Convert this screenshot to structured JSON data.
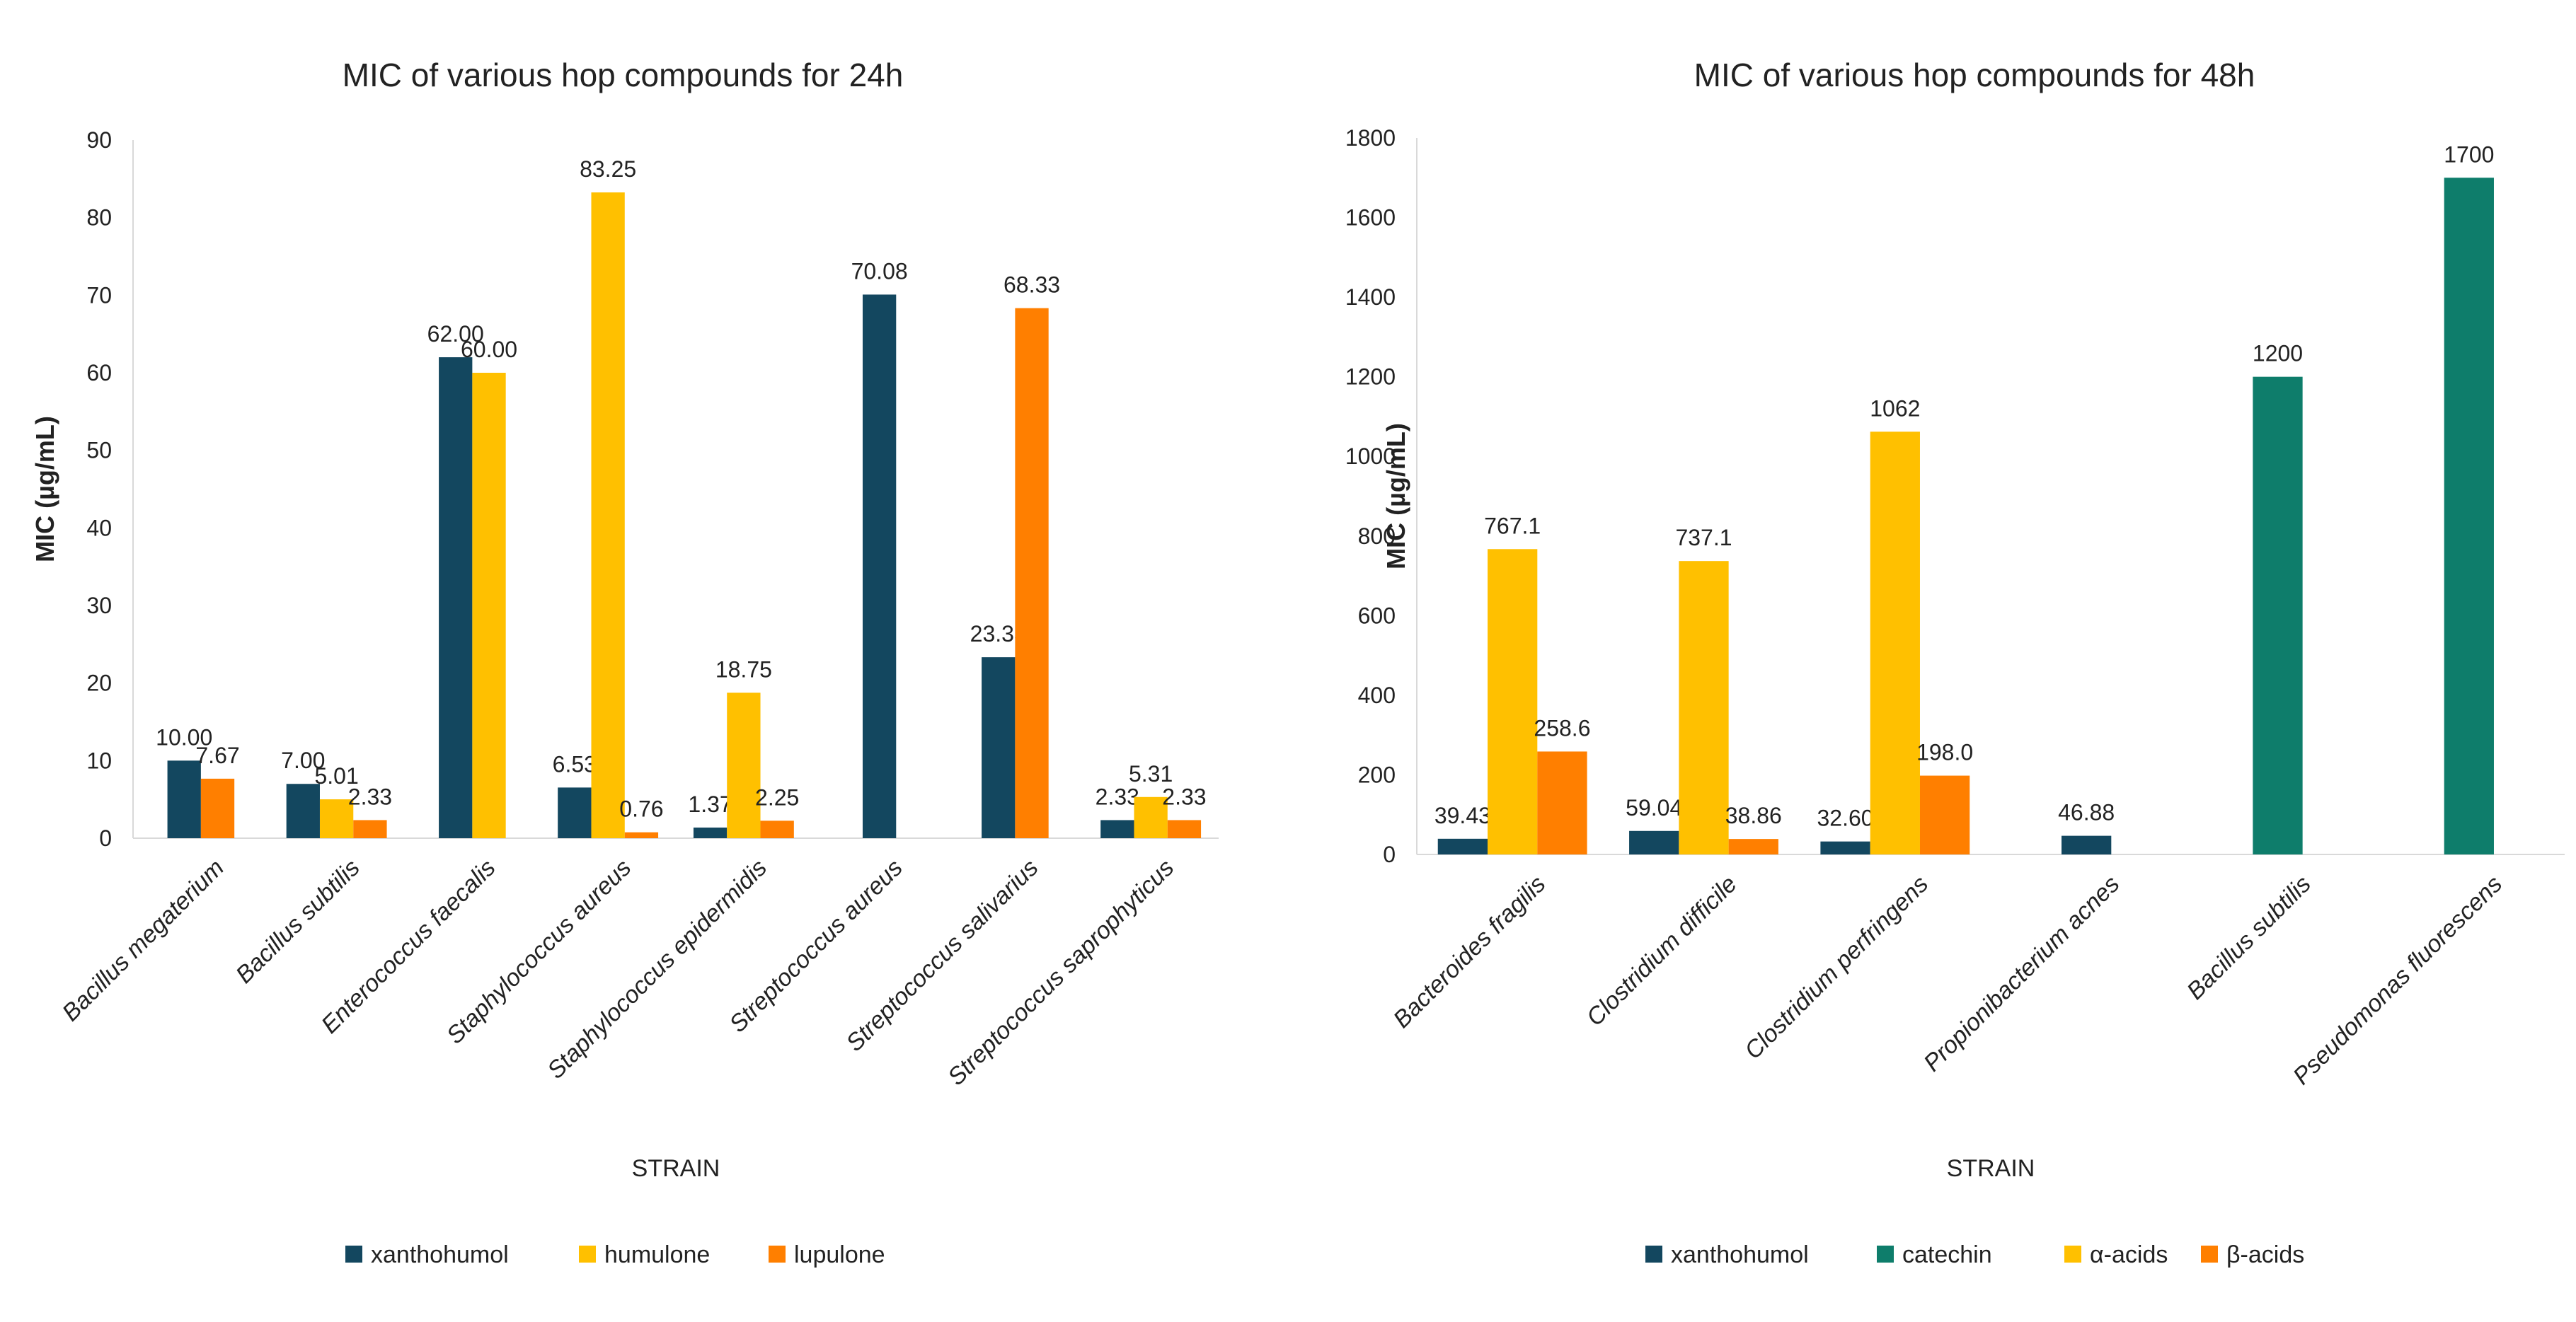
{
  "chart_data": [
    {
      "type": "bar",
      "title": "MIC of various hop compounds for 24h",
      "xlabel": "STRAIN",
      "ylabel": "MIC  (µg/mL)",
      "ylim": [
        0,
        90
      ],
      "yticks": [
        0,
        10,
        20,
        30,
        40,
        50,
        60,
        70,
        80,
        90
      ],
      "grid": false,
      "legend_position": "bottom",
      "categories": [
        "Bacillus megaterium",
        "Bacillus subtilis",
        "Enterococcus faecalis",
        "Staphylococcus aureus",
        "Staphylococcus epidermidis",
        "Streptococcus aureus",
        "Streptococcus salivarius",
        "Streptococcus saprophyticus"
      ],
      "series": [
        {
          "name": "xanthohumol",
          "color": "#13475f",
          "values": [
            10.0,
            7.0,
            62.0,
            6.53,
            1.37,
            70.08,
            23.33,
            2.33
          ],
          "labels": [
            "10.00",
            "7.00",
            "62.00",
            "6.53",
            "1.37",
            "70.08",
            "23.33",
            "2.33"
          ]
        },
        {
          "name": "humulone",
          "color": "#ffc000",
          "values": [
            null,
            5.01,
            60.0,
            83.25,
            18.75,
            null,
            null,
            5.31
          ],
          "labels": [
            "",
            "5.01",
            "60.00",
            "83.25",
            "18.75",
            "",
            "",
            "5.31"
          ]
        },
        {
          "name": "lupulone",
          "color": "#ff7f00",
          "values": [
            7.67,
            2.33,
            null,
            0.76,
            2.25,
            null,
            68.33,
            2.33
          ],
          "labels": [
            "7.67",
            "2.33",
            "",
            "0.76",
            "2.25",
            "",
            "68.33",
            "2.33"
          ]
        }
      ]
    },
    {
      "type": "bar",
      "title": "MIC of various hop compounds for 48h",
      "xlabel": "STRAIN",
      "ylabel": "MIC  (µg/mL)",
      "ylim": [
        0,
        1800
      ],
      "yticks": [
        0,
        200,
        400,
        600,
        800,
        1000,
        1200,
        1400,
        1600,
        1800
      ],
      "grid": false,
      "legend_position": "bottom",
      "categories": [
        "Bacteroides fragilis",
        "Clostridium difficile",
        "Clostridium perfringens",
        "Propionibacterium acnes",
        "Bacillus subtilis",
        "Pseudomonas fluorescens"
      ],
      "series": [
        {
          "name": "xanthohumol",
          "color": "#13475f",
          "values": [
            39.43,
            59.04,
            32.6,
            46.88,
            null,
            null
          ],
          "labels": [
            "39.43",
            "59.04",
            "32.60",
            "46.88",
            "",
            ""
          ]
        },
        {
          "name": "catechin",
          "color": "#0e7d6b",
          "values": [
            null,
            null,
            null,
            null,
            1200,
            1700
          ],
          "labels": [
            "",
            "",
            "",
            "",
            "1200",
            "1700"
          ]
        },
        {
          "name": "α-acids",
          "color": "#ffc000",
          "values": [
            767.1,
            737.1,
            1062,
            null,
            null,
            null
          ],
          "labels": [
            "767.1",
            "737.1",
            "1062",
            "",
            "",
            ""
          ]
        },
        {
          "name": "β-acids",
          "color": "#ff7f00",
          "values": [
            258.6,
            38.86,
            198.0,
            null,
            null,
            null
          ],
          "labels": [
            "258.6",
            "38.86",
            "198.0",
            "",
            "",
            ""
          ]
        }
      ]
    }
  ]
}
